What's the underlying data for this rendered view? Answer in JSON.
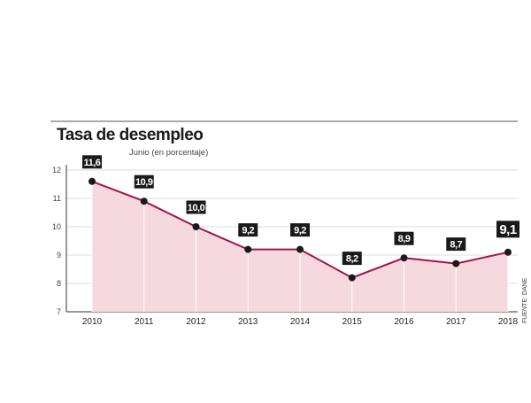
{
  "chart_data": {
    "type": "area",
    "title": "Tasa de desempleo",
    "subtitle": "Junio (en porcentaje)",
    "source": "FUENTE: DANE",
    "xlabel": "",
    "ylabel": "",
    "categories": [
      "2010",
      "2011",
      "2012",
      "2013",
      "2014",
      "2015",
      "2016",
      "2017",
      "2018"
    ],
    "values": [
      11.6,
      10.9,
      10.0,
      9.2,
      9.2,
      8.2,
      8.9,
      8.7,
      9.1
    ],
    "labels": [
      "11,6",
      "10,9",
      "10,0",
      "9,2",
      "9,2",
      "8,2",
      "8,9",
      "8,7",
      "9,1"
    ],
    "yticks": [
      7,
      8,
      9,
      10,
      11,
      12
    ],
    "ylim": [
      7,
      12
    ],
    "grid": true,
    "colors": {
      "line": "#a3154a",
      "fill": "#f5d9de",
      "label_bg": "#1a1a1a",
      "point": "#1a1a1a"
    }
  }
}
